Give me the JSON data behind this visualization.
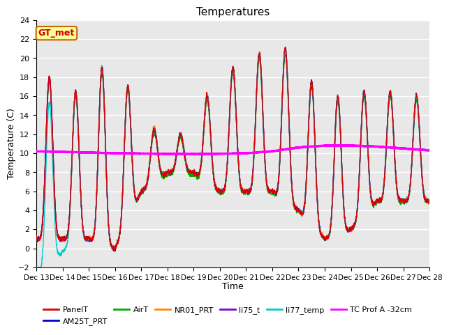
{
  "title": "Temperatures",
  "xlabel": "Time",
  "ylabel": "Temperature (C)",
  "ylim": [
    -2,
    24
  ],
  "yticks": [
    -2,
    0,
    2,
    4,
    6,
    8,
    10,
    12,
    14,
    16,
    18,
    20,
    22,
    24
  ],
  "xtick_labels": [
    "Dec 13",
    "Dec 14",
    "Dec 15",
    "Dec 16",
    "Dec 17",
    "Dec 18",
    "Dec 19",
    "Dec 20",
    "Dec 21",
    "Dec 22",
    "Dec 23",
    "Dec 24",
    "Dec 25",
    "Dec 26",
    "Dec 27",
    "Dec 28"
  ],
  "annotation_text": "GT_met",
  "annotation_color": "#cc0000",
  "annotation_bg": "#ffff99",
  "annotation_border": "#cc6600",
  "series_PanelT_color": "#dd0000",
  "series_AM25T_color": "#0000cc",
  "series_AirT_color": "#00aa00",
  "series_NR01_color": "#ff8800",
  "series_li75_color": "#8800cc",
  "series_li77_color": "#00cccc",
  "series_TC_color": "#ff00ff",
  "lw": 1.0,
  "tc_lw": 1.8,
  "bg_color": "#e8e8e8",
  "grid_color": "#ffffff",
  "n_points": 7200,
  "figsize": [
    6.4,
    4.8
  ],
  "dpi": 100
}
